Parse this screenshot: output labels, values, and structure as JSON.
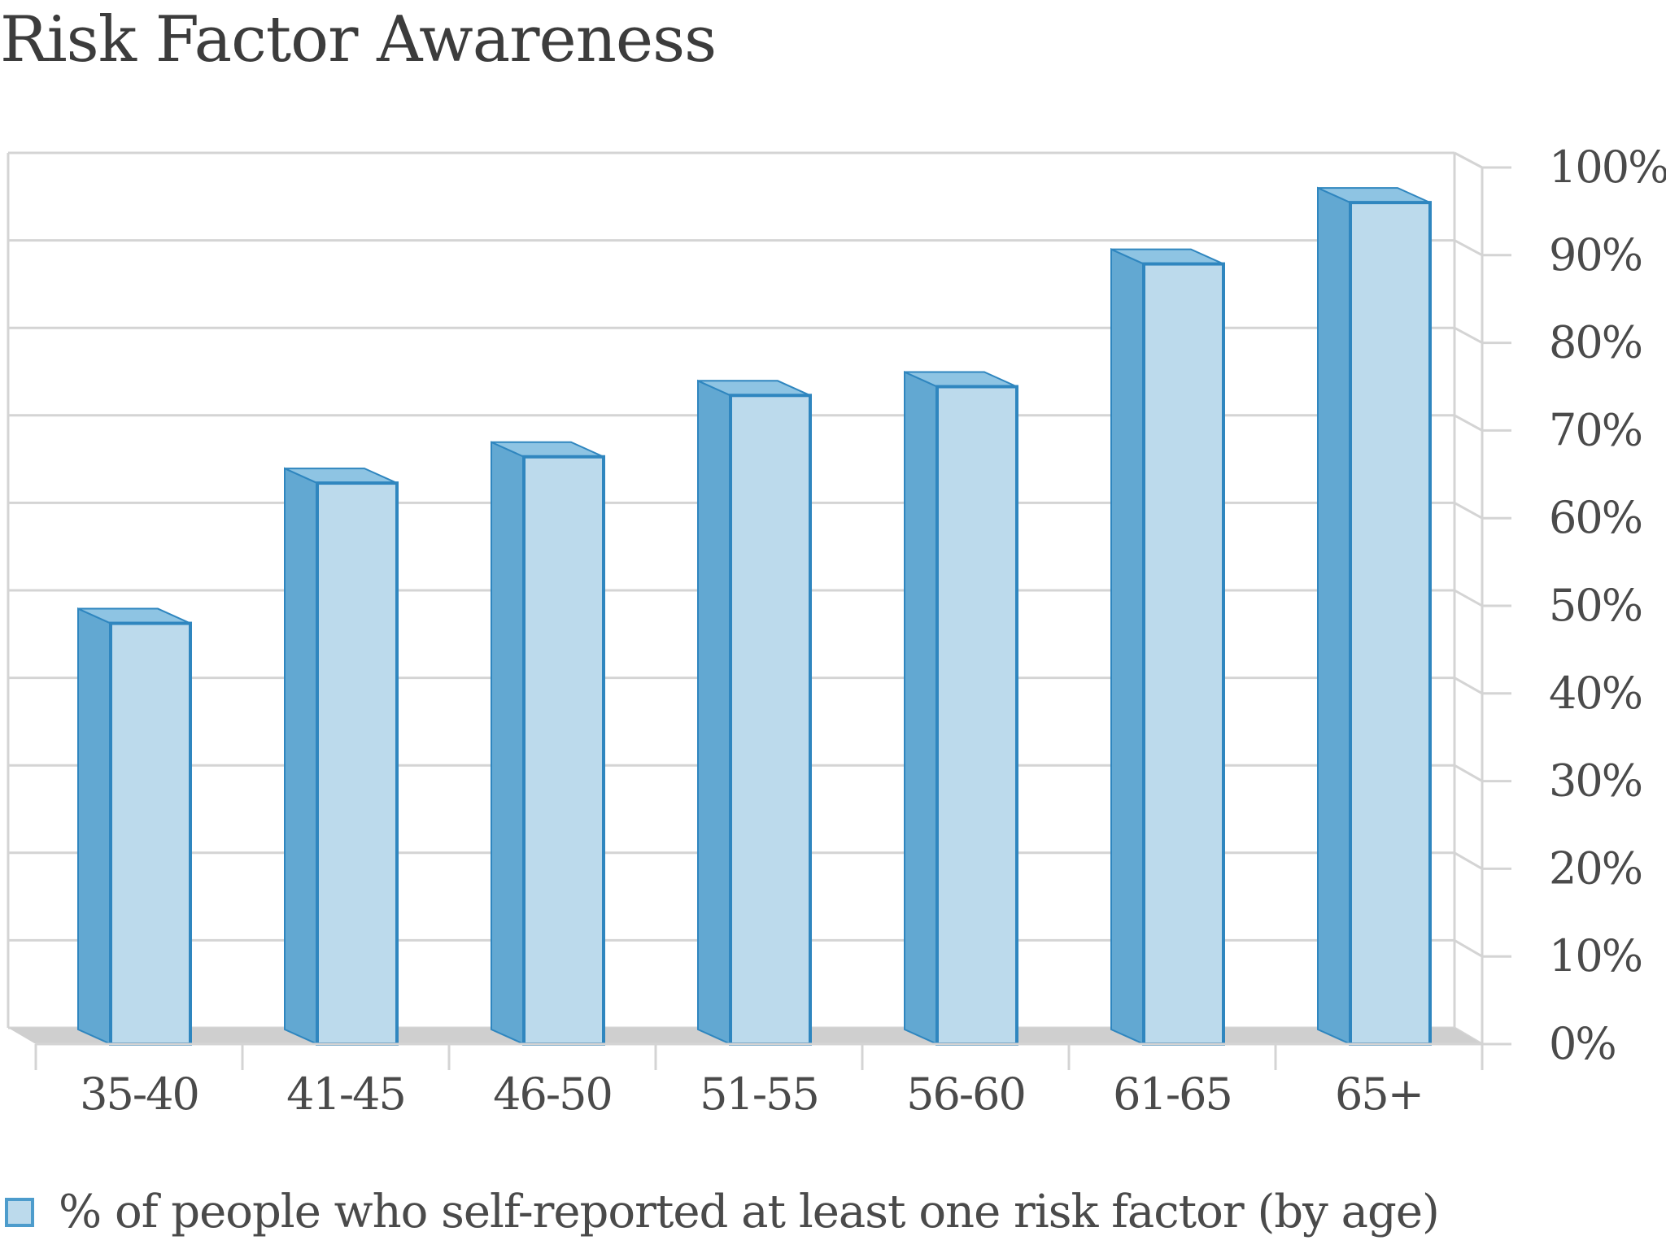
{
  "chart_data": {
    "type": "bar",
    "title": "Risk Factor Awareness",
    "categories": [
      "35-40",
      "41-45",
      "46-50",
      "51-55",
      "56-60",
      "61-65",
      "65+"
    ],
    "series": [
      {
        "name": "% of people who self-reported at least one risk factor (by age)",
        "values": [
          48,
          64,
          67,
          74,
          75,
          89,
          96
        ]
      }
    ],
    "yticks": [
      "0%",
      "10%",
      "20%",
      "30%",
      "40%",
      "50%",
      "60%",
      "70%",
      "80%",
      "90%",
      "100%"
    ],
    "ylim": [
      0,
      100
    ],
    "y_axis_position": "right",
    "grid": true,
    "style": "3d-column",
    "legend_position": "bottom-left",
    "colors": {
      "bar_face": "#bcdaec",
      "bar_side": "#62a8d2",
      "bar_top": "#8ec4e3",
      "bar_outline": "#2f86bf",
      "grid": "#d4d4d4",
      "floor": "#cfcfcf"
    }
  }
}
